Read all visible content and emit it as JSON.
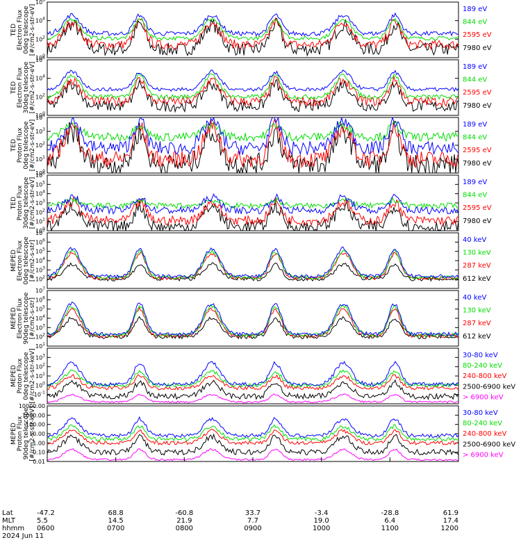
{
  "chart_data": [
    {
      "type": "line",
      "ylabel": [
        "TED",
        "Electron Flux",
        "0deg telescope",
        "[#/cm2-s-str-eV]"
      ],
      "scale": "log",
      "ylim": [
        1,
        1000000
      ],
      "ticks": [
        {
          "v": 1,
          "t": "10^0"
        },
        {
          "v": 100,
          "t": "10^2"
        },
        {
          "v": 10000,
          "t": "10^4"
        },
        {
          "v": 1000000,
          "t": "10^6"
        }
      ],
      "series": [
        {
          "name": "7980 eV",
          "color": "#000000",
          "base": 0.9,
          "peaks": 3.6,
          "noise": 0.7
        },
        {
          "name": "2595 eV",
          "color": "#ff0000",
          "base": 1.4,
          "peaks": 3.9,
          "noise": 0.5
        },
        {
          "name": "844 eV",
          "color": "#00dd00",
          "base": 2.1,
          "peaks": 4.2,
          "noise": 0.2
        },
        {
          "name": "189 eV",
          "color": "#0000ff",
          "base": 2.6,
          "peaks": 4.6,
          "noise": 0.25
        }
      ]
    },
    {
      "type": "line",
      "ylabel": [
        "TED",
        "Electron Flux",
        "30deg telescope",
        "[#/cm2-s-str-eV]"
      ],
      "scale": "log",
      "ylim": [
        1,
        1000000
      ],
      "ticks": [
        {
          "v": 1,
          "t": "10^0"
        },
        {
          "v": 100,
          "t": "10^2"
        },
        {
          "v": 10000,
          "t": "10^4"
        },
        {
          "v": 1000000,
          "t": "10^6"
        }
      ],
      "series": [
        {
          "name": "7980 eV",
          "color": "#000000",
          "base": 1.0,
          "peaks": 3.4,
          "noise": 0.6
        },
        {
          "name": "2595 eV",
          "color": "#ff0000",
          "base": 1.5,
          "peaks": 3.8,
          "noise": 0.5
        },
        {
          "name": "844 eV",
          "color": "#00dd00",
          "base": 2.0,
          "peaks": 4.3,
          "noise": 0.25
        },
        {
          "name": "189 eV",
          "color": "#0000ff",
          "base": 2.8,
          "peaks": 4.7,
          "noise": 0.2
        }
      ]
    },
    {
      "type": "line",
      "ylabel": [
        "TED",
        "Proton Flux",
        "0deg telescope",
        "[#/cm2-s-str-eV]"
      ],
      "scale": "log",
      "ylim": [
        1,
        10000
      ],
      "ticks": [
        {
          "v": 1,
          "t": "10^0"
        },
        {
          "v": 10,
          "t": "10^1"
        },
        {
          "v": 100,
          "t": "10^2"
        },
        {
          "v": 1000,
          "t": "10^3"
        },
        {
          "v": 10000,
          "t": "10^4"
        }
      ],
      "series": [
        {
          "name": "7980 eV",
          "color": "#000000",
          "base": 0.6,
          "peaks": 3.0,
          "noise": 0.8
        },
        {
          "name": "2595 eV",
          "color": "#ff0000",
          "base": 1.0,
          "peaks": 3.3,
          "noise": 0.6
        },
        {
          "name": "844 eV",
          "color": "#00dd00",
          "base": 2.6,
          "peaks": 3.5,
          "noise": 0.3
        },
        {
          "name": "189 eV",
          "color": "#0000ff",
          "base": 1.8,
          "peaks": 3.8,
          "noise": 0.5
        }
      ]
    },
    {
      "type": "line",
      "ylabel": [
        "TED",
        "Proton Flux",
        "30deg telescope",
        "[#/cm2-s-str-eV]"
      ],
      "scale": "log",
      "ylim": [
        1,
        1000000
      ],
      "ticks": [
        {
          "v": 1,
          "t": "10^0"
        },
        {
          "v": 10,
          "t": "10^1"
        },
        {
          "v": 100,
          "t": "10^2"
        },
        {
          "v": 1000,
          "t": "10^3"
        },
        {
          "v": 10000,
          "t": "10^4"
        },
        {
          "v": 100000,
          "t": "10^5"
        },
        {
          "v": 1000000,
          "t": "10^6"
        }
      ],
      "series": [
        {
          "name": "7980 eV",
          "color": "#000000",
          "base": 0.4,
          "peaks": 2.7,
          "noise": 0.7
        },
        {
          "name": "2595 eV",
          "color": "#ff0000",
          "base": 1.1,
          "peaks": 3.1,
          "noise": 0.5
        },
        {
          "name": "844 eV",
          "color": "#00dd00",
          "base": 2.7,
          "peaks": 3.3,
          "noise": 0.3
        },
        {
          "name": "189 eV",
          "color": "#0000ff",
          "base": 2.2,
          "peaks": 3.6,
          "noise": 0.4
        }
      ]
    },
    {
      "type": "line",
      "ylabel": [
        "MEPED",
        "Electron Flux",
        "0deg telescope",
        "[#/cm2-s-str]"
      ],
      "scale": "log",
      "ylim": [
        10,
        10000000
      ],
      "ticks": [
        {
          "v": 100,
          "t": "10^2"
        },
        {
          "v": 1000,
          "t": "10^3"
        },
        {
          "v": 10000,
          "t": "10^4"
        },
        {
          "v": 100000,
          "t": "10^5"
        },
        {
          "v": 1000000,
          "t": "10^6"
        },
        {
          "v": 10000000,
          "t": "10^7"
        }
      ],
      "series": [
        {
          "name": "612 keV",
          "color": "#000000",
          "base": 2.0,
          "peaks": 3.6,
          "noise": 0.2
        },
        {
          "name": "287 keV",
          "color": "#ff0000",
          "base": 2.1,
          "peaks": 4.8,
          "noise": 0.2
        },
        {
          "name": "130 keV",
          "color": "#00dd00",
          "base": 2.2,
          "peaks": 5.0,
          "noise": 0.2
        },
        {
          "name": "40 keV",
          "color": "#0000ff",
          "base": 2.3,
          "peaks": 5.3,
          "noise": 0.2
        }
      ]
    },
    {
      "type": "line",
      "ylabel": [
        "MEPED",
        "Electron Flux",
        "90deg telescope",
        "[#/cm2-s-str]"
      ],
      "scale": "log",
      "ylim": [
        10,
        10000000
      ],
      "ticks": [
        {
          "v": 10,
          "t": "10^1"
        },
        {
          "v": 100,
          "t": "10^2"
        },
        {
          "v": 1000,
          "t": "10^3"
        },
        {
          "v": 10000,
          "t": "10^4"
        },
        {
          "v": 100000,
          "t": "10^5"
        },
        {
          "v": 1000000,
          "t": "10^6"
        },
        {
          "v": 10000000,
          "t": "10^7"
        }
      ],
      "series": [
        {
          "name": "612 keV",
          "color": "#000000",
          "base": 2.0,
          "peaks": 4.0,
          "noise": 0.2
        },
        {
          "name": "287 keV",
          "color": "#ff0000",
          "base": 2.1,
          "peaks": 5.0,
          "noise": 0.2
        },
        {
          "name": "130 keV",
          "color": "#00dd00",
          "base": 2.2,
          "peaks": 5.3,
          "noise": 0.2
        },
        {
          "name": "40 keV",
          "color": "#0000ff",
          "base": 2.3,
          "peaks": 5.6,
          "noise": 0.2
        }
      ]
    },
    {
      "type": "line",
      "ylabel": [
        "MEPED",
        "Proton Flux",
        "0deg telescope",
        "[#/cm2-s-str-keV]"
      ],
      "scale": "log",
      "ylim": [
        0.01,
        10000
      ],
      "ticks": [
        {
          "v": 0.1,
          "t": "10^-1"
        },
        {
          "v": 1,
          "t": "10^0"
        },
        {
          "v": 10,
          "t": "10^1"
        },
        {
          "v": 100,
          "t": "10^2"
        },
        {
          "v": 1000,
          "t": "10^3"
        }
      ],
      "series": [
        {
          "name": "> 6900 keV",
          "color": "#ff00ff",
          "base": -1.8,
          "peaks": -1.0,
          "noise": 0.1
        },
        {
          "name": "2500-6900 keV",
          "color": "#000000",
          "base": -1.2,
          "peaks": 0.3,
          "noise": 0.3
        },
        {
          "name": "240-800 keV",
          "color": "#ff0000",
          "base": -0.3,
          "peaks": 1.0,
          "noise": 0.2
        },
        {
          "name": "80-240 keV",
          "color": "#00dd00",
          "base": 0.0,
          "peaks": 1.5,
          "noise": 0.2
        },
        {
          "name": "30-80 keV",
          "color": "#0000ff",
          "base": 0.1,
          "peaks": 2.4,
          "noise": 0.2
        }
      ]
    },
    {
      "type": "line",
      "ylabel": [
        "MEPED",
        "Proton Flux",
        "90deg telescope",
        "[#/cm2-s-str-keV]"
      ],
      "scale": "log",
      "ylim": [
        0.01,
        10000
      ],
      "ticks": [
        {
          "v": 0.01,
          "t": "0.01"
        },
        {
          "v": 0.1,
          "t": "0.10"
        },
        {
          "v": 1,
          "t": "1.00"
        },
        {
          "v": 10,
          "t": "10.00"
        },
        {
          "v": 100,
          "t": "100.00"
        },
        {
          "v": 1000,
          "t": "1000.00"
        },
        {
          "v": 10000,
          "t": "10000.00"
        }
      ],
      "series": [
        {
          "name": "> 6900 keV",
          "color": "#ff00ff",
          "base": -1.8,
          "peaks": -0.7,
          "noise": 0.1
        },
        {
          "name": "2500-6900 keV",
          "color": "#000000",
          "base": -1.0,
          "peaks": 0.7,
          "noise": 0.3
        },
        {
          "name": "240-800 keV",
          "color": "#ff0000",
          "base": 0.0,
          "peaks": 1.3,
          "noise": 0.2
        },
        {
          "name": "80-240 keV",
          "color": "#00dd00",
          "base": 0.4,
          "peaks": 1.8,
          "noise": 0.2
        },
        {
          "name": "30-80 keV",
          "color": "#0000ff",
          "base": 0.8,
          "peaks": 2.6,
          "noise": 0.2
        }
      ]
    }
  ],
  "x_axis": {
    "row_labels": [
      "Lat",
      "MLT",
      "hhmm",
      "2024 Jun 11"
    ],
    "ticks": [
      {
        "lat": "-47.2",
        "mlt": "5.5",
        "hhmm": "0600"
      },
      {
        "lat": "68.8",
        "mlt": "14.5",
        "hhmm": "0700"
      },
      {
        "lat": "-60.8",
        "mlt": "21.9",
        "hhmm": "0800"
      },
      {
        "lat": "33.7",
        "mlt": "7.7",
        "hhmm": "0900"
      },
      {
        "lat": "-3.4",
        "mlt": "19.0",
        "hhmm": "1000"
      },
      {
        "lat": "-28.8",
        "mlt": "6.4",
        "hhmm": "1100"
      },
      {
        "lat": "61.9",
        "mlt": "17.4",
        "hhmm": "1200"
      }
    ]
  },
  "events": [
    0.06,
    0.225,
    0.4,
    0.555,
    0.72,
    0.845
  ]
}
